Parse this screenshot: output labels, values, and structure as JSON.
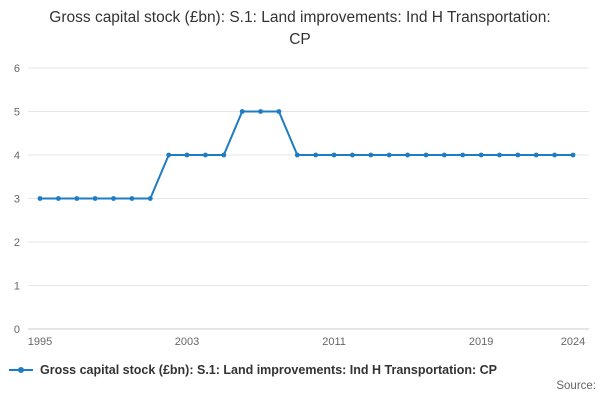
{
  "chart_data": {
    "type": "line",
    "title": "Gross capital stock (£bn): S.1: Land improvements: Ind H Transportation: CP",
    "x": [
      1995,
      1996,
      1997,
      1998,
      1999,
      2000,
      2001,
      2002,
      2003,
      2004,
      2005,
      2006,
      2007,
      2008,
      2009,
      2010,
      2011,
      2012,
      2013,
      2014,
      2015,
      2016,
      2017,
      2018,
      2019,
      2020,
      2021,
      2022,
      2023,
      2024
    ],
    "values": [
      3,
      3,
      3,
      3,
      3,
      3,
      3,
      4,
      4,
      4,
      4,
      5,
      5,
      5,
      4,
      4,
      4,
      4,
      4,
      4,
      4,
      4,
      4,
      4,
      4,
      4,
      4,
      4,
      4,
      4
    ],
    "xlabel": "",
    "ylabel": "",
    "ylim": [
      0,
      6
    ],
    "yticks": [
      0,
      1,
      2,
      3,
      4,
      5,
      6
    ],
    "xticks": [
      1995,
      2003,
      2011,
      2019,
      2024
    ],
    "grid": "horizontal",
    "marker": "circle",
    "legend_position": "bottom-left",
    "colors": {
      "line": "#1d7cc4",
      "grid": "#e6e6e6",
      "axis": "#cccccc",
      "tick_text": "#666666",
      "title_text": "#333333",
      "legend_text": "#333333",
      "source_text": "#666666"
    }
  },
  "legend": {
    "label": "Gross capital stock (£bn): S.1: Land improvements: Ind H Transportation: CP"
  },
  "footer": {
    "source": "Source:"
  }
}
